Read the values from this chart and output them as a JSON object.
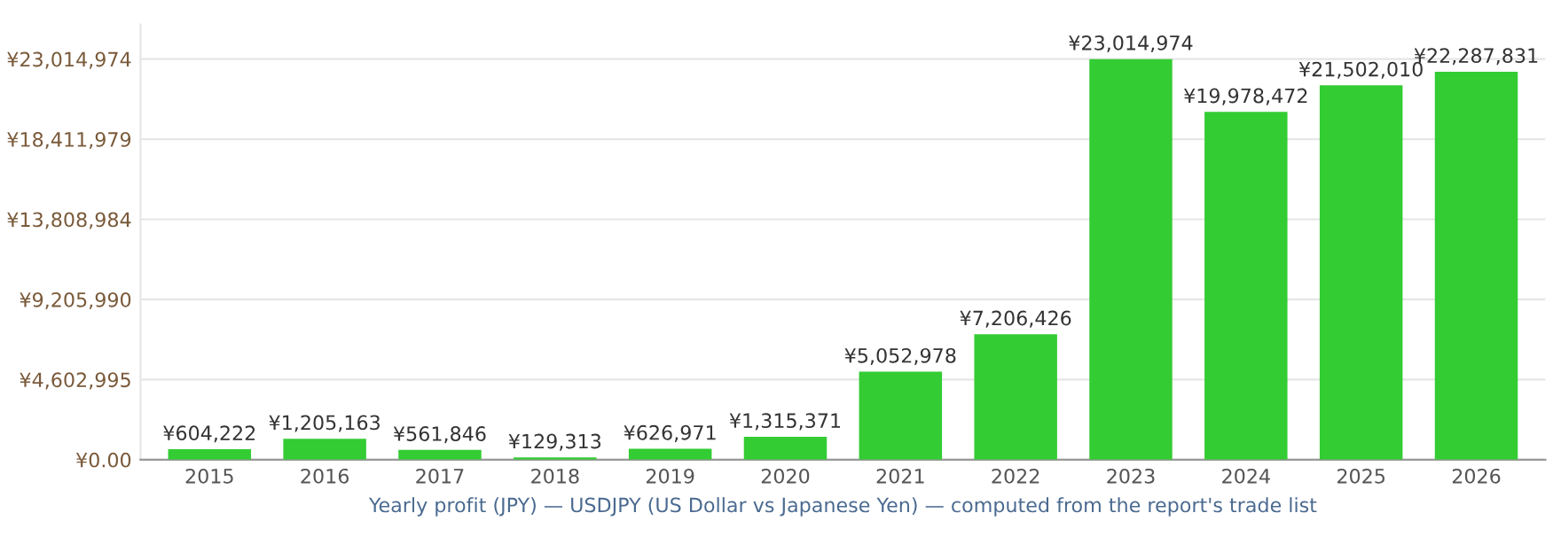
{
  "chart_data": {
    "type": "bar",
    "xlabel": "Yearly profit (JPY) — USDJPY (US Dollar vs Japanese Yen) — computed from the report's trade list",
    "categories": [
      "2015",
      "2016",
      "2017",
      "2018",
      "2019",
      "2020",
      "2021",
      "2022",
      "2023",
      "2024",
      "2025",
      "2026"
    ],
    "values": [
      604222,
      1205163,
      561846,
      129313,
      626971,
      1315371,
      5052978,
      7206426,
      23014974,
      19978472,
      21502010,
      22287831
    ],
    "value_labels": [
      "¥604,222",
      "¥1,205,163",
      "¥561,846",
      "¥129,313",
      "¥626,971",
      "¥1,315,371",
      "¥5,052,978",
      "¥7,206,426",
      "¥23,014,974",
      "¥19,978,472",
      "¥21,502,010",
      "¥22,287,831"
    ],
    "color": "#33cc33",
    "ylim": [
      0,
      25000000
    ],
    "yticks": [
      {
        "value": 0,
        "label": "¥0.00"
      },
      {
        "value": 4602995,
        "label": "¥4,602,995"
      },
      {
        "value": 9205990,
        "label": "¥9,205,990"
      },
      {
        "value": 13808984,
        "label": "¥13,808,984"
      },
      {
        "value": 18411979,
        "label": "¥18,411,979"
      },
      {
        "value": 23014974,
        "label": "¥23,014,974"
      }
    ],
    "grid": "y",
    "legend": false
  }
}
